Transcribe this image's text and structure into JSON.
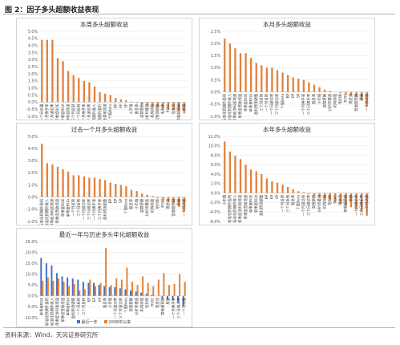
{
  "figure": {
    "title": "图 2：因子多头超额收益表现",
    "source": "资料来源：Wind，天风证券研究所"
  },
  "colors": {
    "orange": "#e2823b",
    "blue": "#4472c4",
    "axis": "#bfbfbf",
    "grid": "#e6e6e6"
  },
  "chart_data": [
    {
      "type": "bar",
      "title": "本周多头超额收益",
      "ylim": [
        -1.0,
        5.0
      ],
      "yticks": [
        -1.0,
        -0.5,
        0.0,
        0.5,
        1.0,
        1.5,
        2.0,
        2.5,
        3.0,
        3.5,
        4.0,
        4.5,
        5.0
      ],
      "tick_labels": [
        "-1.0%",
        "-0.5%",
        "0.0%",
        "0.5%",
        "1.0%",
        "1.5%",
        "2.0%",
        "2.5%",
        "3.0%",
        "3.5%",
        "4.0%",
        "4.5%",
        "5.0%"
      ],
      "categories": [
        "一个月动量",
        "一个月换手率",
        "一个月波动率",
        "单季度ROE",
        "单季度ROA",
        "单季度净利润增速",
        "三个月反转",
        "一个月反转",
        "三个月换手率",
        "三个月波动率",
        "标准化预期外收入",
        "标准化预期外盈利",
        "单季度营收增速",
        "个股Beta",
        "BP",
        "EP",
        "SP",
        "小市值",
        "股息率",
        "高管薪酬",
        "分析师覆盖",
        "机构持股",
        "盈利预测调整",
        "毛利率",
        "ROIC",
        "现金流",
        "营收超预期",
        "质量"
      ],
      "series": [
        {
          "values": [
            4.4,
            4.4,
            4.4,
            3.1,
            2.9,
            2.2,
            1.9,
            1.7,
            1.5,
            1.4,
            1.1,
            0.7,
            0.6,
            0.5,
            0.3,
            0.2,
            0.15,
            0.05,
            -0.05,
            -0.15,
            -0.2,
            -0.3,
            -0.35,
            -0.45,
            -0.5,
            -0.55,
            -0.6,
            -0.8
          ]
        }
      ]
    },
    {
      "type": "bar",
      "title": "本月多头超额收益",
      "ylim": [
        -1.0,
        2.5
      ],
      "yticks": [
        -1.0,
        -0.5,
        0.0,
        0.5,
        1.0,
        1.5,
        2.0,
        2.5
      ],
      "tick_labels": [
        "-1.0%",
        "-0.5%",
        "0.0%",
        "0.5%",
        "1.0%",
        "1.5%",
        "2.0%",
        "2.5%"
      ],
      "categories": [
        "标准化预期外盈利",
        "标准化预期外收入",
        "单季度净利润增速",
        "单季度营收增速",
        "单季度ROE",
        "单季度ROA",
        "盈利预测调整",
        "三个月反转",
        "一个月反转",
        "一个月波动率",
        "三个月波动率",
        "个股Beta",
        "BP",
        "EP",
        "SP",
        "一个月换手率",
        "三个月换手率",
        "股息率",
        "小市值",
        "高管薪酬",
        "分析师覆盖",
        "机构持股",
        "毛利率",
        "ROIC",
        "现金流",
        "营收超预期",
        "质量",
        "一个月动量"
      ],
      "series": [
        {
          "values": [
            2.2,
            2.0,
            1.8,
            1.6,
            1.6,
            1.4,
            1.2,
            1.1,
            1.0,
            1.0,
            0.9,
            0.8,
            0.7,
            0.6,
            0.55,
            0.5,
            0.4,
            0.3,
            0.2,
            0.1,
            0.05,
            0.0,
            -0.05,
            -0.1,
            -0.15,
            -0.2,
            -0.35,
            -0.6
          ]
        }
      ]
    },
    {
      "type": "bar",
      "title": "过去一个月多头超额收益",
      "ylim": [
        -2.0,
        5.0
      ],
      "yticks": [
        -2.0,
        -1.0,
        0.0,
        1.0,
        2.0,
        3.0,
        4.0,
        5.0
      ],
      "tick_labels": [
        "-2.0%",
        "-1.0%",
        "0.0%",
        "1.0%",
        "2.0%",
        "3.0%",
        "4.0%",
        "5.0%"
      ],
      "categories": [
        "标准化预期外盈利",
        "标准化预期外收入",
        "单季度净利润增速",
        "单季度营收增速",
        "单季度ROE",
        "单季度ROA",
        "一个月反转",
        "三个月反转",
        "一个月波动率",
        "三个月波动率",
        "一个月换手率",
        "三个月换手率",
        "盈利预测调整",
        "BP",
        "EP",
        "SP",
        "个股Beta",
        "股息率",
        "小市值",
        "高管薪酬",
        "分析师覆盖",
        "机构持股",
        "毛利率",
        "ROIC",
        "现金流",
        "营收超预期",
        "质量",
        "一个月动量"
      ],
      "series": [
        {
          "values": [
            4.4,
            2.8,
            2.7,
            2.5,
            2.3,
            2.1,
            1.8,
            1.8,
            1.7,
            1.6,
            1.6,
            1.5,
            1.4,
            1.2,
            1.1,
            1.0,
            0.9,
            0.6,
            0.5,
            0.3,
            0.2,
            0.1,
            -0.1,
            -0.3,
            -0.4,
            -0.5,
            -0.8,
            -1.2
          ]
        }
      ]
    },
    {
      "type": "bar",
      "title": "本年多头超额收益",
      "ylim": [
        -6.0,
        12.0
      ],
      "yticks": [
        -6.0,
        -4.0,
        -2.0,
        0.0,
        2.0,
        4.0,
        6.0,
        8.0,
        10.0,
        12.0
      ],
      "tick_labels": [
        "-6.0%",
        "-4.0%",
        "-2.0%",
        "0.0%",
        "2.0%",
        "4.0%",
        "6.0%",
        "8.0%",
        "10.0%",
        "12.0%"
      ],
      "categories": [
        "小市值",
        "标准化预期外盈利",
        "标准化预期外收入",
        "单季度净利润增速",
        "单季度营收增速",
        "单季度ROE",
        "单季度ROA",
        "盈利预测调整",
        "BP",
        "EP",
        "SP",
        "一个月反转",
        "三个月反转",
        "股息率",
        "个股Beta",
        "一个月波动率",
        "三个月波动率",
        "高管薪酬",
        "分析师覆盖",
        "机构持股",
        "毛利率",
        "ROIC",
        "现金流",
        "营收超预期",
        "质量",
        "一个月换手率",
        "三个月换手率",
        "一个月动量"
      ],
      "series": [
        {
          "values": [
            10.9,
            8.8,
            7.9,
            7.2,
            6.0,
            5.0,
            4.6,
            4.0,
            3.1,
            2.5,
            2.2,
            1.8,
            1.3,
            0.8,
            0.4,
            0.2,
            -0.2,
            -0.5,
            -0.8,
            -1.2,
            -1.5,
            -1.8,
            -2.2,
            -2.6,
            -3.0,
            -3.5,
            -4.0,
            -4.8
          ]
        }
      ]
    },
    {
      "type": "bar",
      "title": "最近一年与历史多头年化超额收益",
      "ylim": [
        -10.0,
        25.0
      ],
      "yticks": [
        -10.0,
        -5.0,
        0.0,
        5.0,
        10.0,
        15.0,
        20.0,
        25.0
      ],
      "tick_labels": [
        "-10.0%",
        "-5.0%",
        "0.0%",
        "5.0%",
        "10.0%",
        "15.0%",
        "20.0%",
        "25.0%"
      ],
      "categories": [
        "单季度ROE",
        "标准化预期外盈利",
        "标准化预期外收入",
        "单季度净利润增速",
        "单季度营收增速",
        "单季度ROA",
        "盈利预测调整",
        "一个月反转",
        "三个月反转",
        "BP",
        "EP",
        "SP",
        "股息率",
        "小市值",
        "一个月波动率",
        "三个月波动率",
        "个股Beta",
        "高管薪酬",
        "分析师覆盖",
        "机构持股",
        "毛利率",
        "ROIC",
        "现金流",
        "营收超预期",
        "质量",
        "一个月换手率",
        "三个月换手率",
        "一个月动量"
      ],
      "legend": [
        "最近一年",
        "2008年以来"
      ],
      "legend_position": "bottom",
      "series": [
        {
          "name": "最近一年",
          "values": [
            17.5,
            15.0,
            14.0,
            10.5,
            9.0,
            8.5,
            8.0,
            7.5,
            6.5,
            6.0,
            6.0,
            5.0,
            4.5,
            4.0,
            4.0,
            3.5,
            3.0,
            2.5,
            2.0,
            1.5,
            1.0,
            0.5,
            0.0,
            -1.0,
            -1.5,
            -2.0,
            -3.0,
            -4.5
          ]
        },
        {
          "name": "2008年以来",
          "values": [
            7.0,
            8.5,
            7.0,
            8.0,
            6.5,
            4.5,
            5.5,
            2.5,
            3.0,
            7.5,
            4.5,
            6.0,
            22.0,
            5.0,
            8.0,
            7.5,
            13.0,
            6.5,
            5.0,
            9.0,
            6.0,
            4.5,
            7.5,
            10.5,
            5.0,
            5.5,
            10.0,
            6.5
          ]
        }
      ]
    }
  ]
}
